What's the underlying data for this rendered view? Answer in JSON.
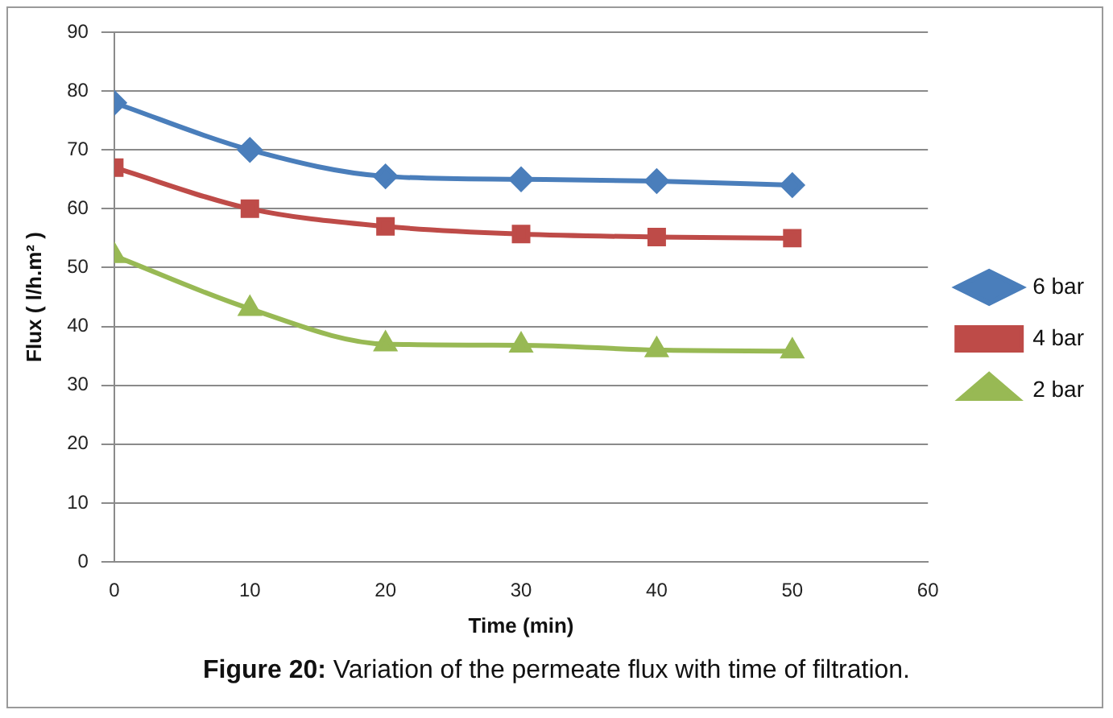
{
  "chart_data": {
    "type": "line",
    "xlabel": "Time (min)",
    "ylabel": "Flux ( l/h.m² )",
    "x": [
      0,
      10,
      20,
      30,
      40,
      50
    ],
    "xlim": [
      0,
      60
    ],
    "xticks": [
      0,
      10,
      20,
      30,
      40,
      50,
      60
    ],
    "ylim": [
      0,
      90
    ],
    "yticks": [
      0,
      10,
      20,
      30,
      40,
      50,
      60,
      70,
      80,
      90
    ],
    "grid": "y",
    "legend": "right",
    "series": [
      {
        "name": "6 bar",
        "color": "#4a7ebb",
        "marker": "diamond",
        "values": [
          78,
          70,
          65.5,
          65,
          64.7,
          64
        ]
      },
      {
        "name": "4 bar",
        "color": "#be4b48",
        "marker": "square",
        "values": [
          67,
          60,
          57,
          55.7,
          55.2,
          55
        ]
      },
      {
        "name": "2 bar",
        "color": "#98b954",
        "marker": "triangle",
        "values": [
          52,
          43,
          37,
          36.8,
          36,
          35.8
        ]
      }
    ],
    "annotations": [
      "Figure 20: Variation of the permeate flux with time of filtration."
    ]
  }
}
